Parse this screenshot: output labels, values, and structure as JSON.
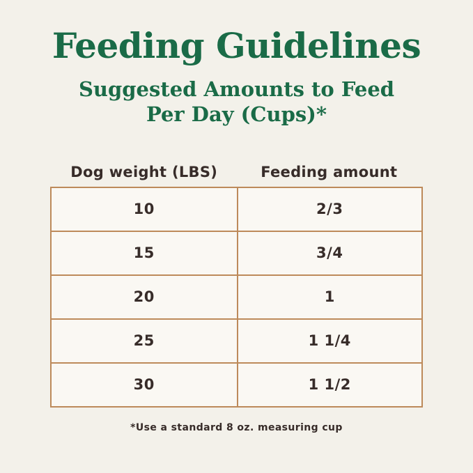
{
  "page": {
    "background_color": "#f3f1ea",
    "accent_green": "#1a6b47",
    "border_tan": "#bd8a5a",
    "text_dark": "#372c29",
    "cell_background": "#faf8f3"
  },
  "header": {
    "title": "Feeding Guidelines",
    "subtitle_line1": "Suggested Amounts to Feed",
    "subtitle_line2": "Per Day (Cups)*"
  },
  "table": {
    "columns": [
      "Dog weight (LBS)",
      "Feeding amount"
    ],
    "rows": [
      [
        "10",
        "2/3"
      ],
      [
        "15",
        "3/4"
      ],
      [
        "20",
        "1"
      ],
      [
        "25",
        "1 1/4"
      ],
      [
        "30",
        "1 1/2"
      ]
    ]
  },
  "footnote": "*Use a standard 8 oz. measuring cup",
  "chart_data": {
    "type": "table",
    "title": "Feeding Guidelines",
    "subtitle": "Suggested Amounts to Feed Per Day (Cups)*",
    "columns": [
      "Dog weight (LBS)",
      "Feeding amount"
    ],
    "rows": [
      {
        "dog_weight_lbs": 10,
        "feeding_amount_cups": "2/3"
      },
      {
        "dog_weight_lbs": 15,
        "feeding_amount_cups": "3/4"
      },
      {
        "dog_weight_lbs": 20,
        "feeding_amount_cups": "1"
      },
      {
        "dog_weight_lbs": 25,
        "feeding_amount_cups": "1 1/4"
      },
      {
        "dog_weight_lbs": 30,
        "feeding_amount_cups": "1 1/2"
      }
    ],
    "footnote": "*Use a standard 8 oz. measuring cup",
    "layout": {
      "grid": "tan bordered 5x2 table",
      "header_row_outside_border": true
    }
  }
}
